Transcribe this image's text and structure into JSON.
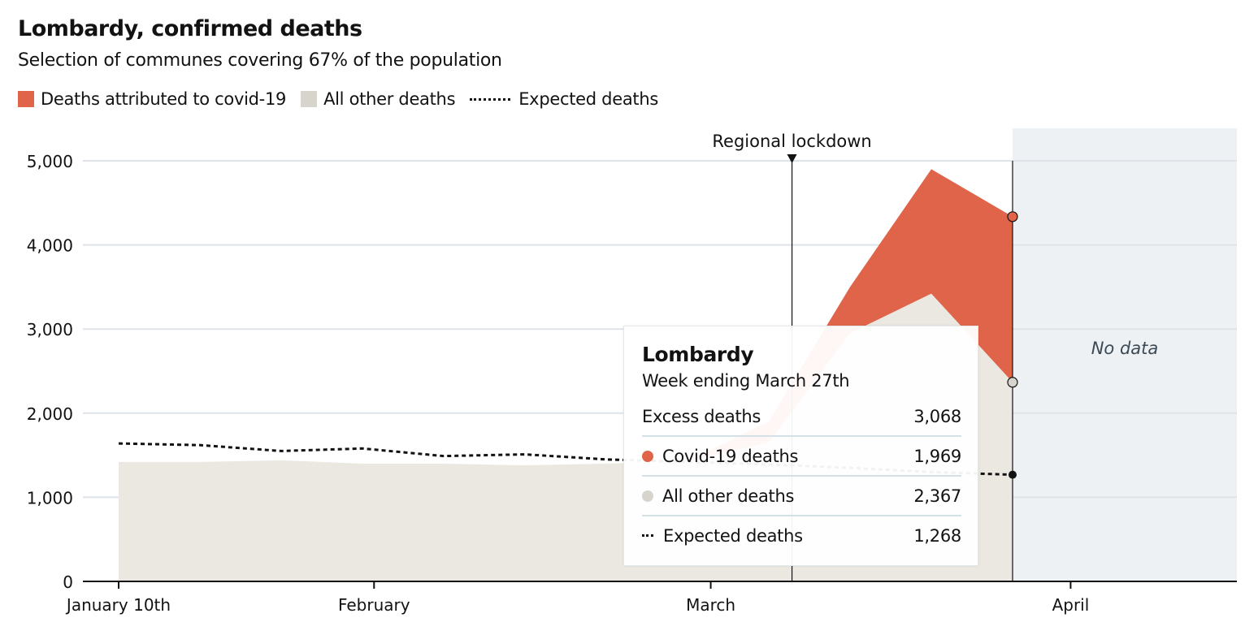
{
  "chart_data": {
    "type": "area",
    "title": "Lombardy, confirmed deaths",
    "subtitle": "Selection of communes covering 67% of the population",
    "legend": [
      {
        "label": "Deaths attributed to covid-19",
        "color": "#e0644a",
        "kind": "area"
      },
      {
        "label": "All other deaths",
        "color": "#d6d4cc",
        "kind": "area"
      },
      {
        "label": "Expected deaths",
        "color": "#121212",
        "kind": "dotted-line"
      }
    ],
    "legend_placement": "top-left",
    "x": [
      "2020-01-10",
      "2020-01-17",
      "2020-01-24",
      "2020-01-31",
      "2020-02-07",
      "2020-02-14",
      "2020-02-21",
      "2020-02-28",
      "2020-03-06",
      "2020-03-13",
      "2020-03-20",
      "2020-03-27"
    ],
    "x_range": [
      "2020-01-10",
      "2020-04-18"
    ],
    "x_ticks": [
      {
        "date": "2020-01-10",
        "label": "January 10th"
      },
      {
        "date": "2020-02-01",
        "label": "February"
      },
      {
        "date": "2020-03-01",
        "label": "March"
      },
      {
        "date": "2020-04-01",
        "label": "April"
      }
    ],
    "ylim": [
      0,
      5000
    ],
    "y_ticks": [
      0,
      1000,
      2000,
      3000,
      4000,
      5000
    ],
    "y_tick_labels": [
      "0",
      "1,000",
      "2,000",
      "3,000",
      "4,000",
      "5,000"
    ],
    "grid": "horizontal",
    "series": [
      {
        "name": "All other deaths",
        "color": "#ebe8e1",
        "values": [
          1420,
          1420,
          1440,
          1400,
          1400,
          1380,
          1400,
          1430,
          1650,
          2950,
          3420,
          2367
        ]
      },
      {
        "name": "Deaths attributed to covid-19",
        "color": "#e0644a",
        "values": [
          0,
          0,
          0,
          0,
          0,
          0,
          0,
          0,
          250,
          550,
          1480,
          1969
        ]
      },
      {
        "name": "Expected deaths",
        "color": "#121212",
        "values": [
          1640,
          1620,
          1550,
          1580,
          1490,
          1510,
          1450,
          1420,
          1390,
          1350,
          1300,
          1268
        ]
      }
    ],
    "annotations": [
      {
        "type": "vline",
        "date": "2020-03-08",
        "label": "Regional lockdown"
      },
      {
        "type": "shaded-region",
        "from": "2020-03-27",
        "to": "2020-04-18",
        "label": "No data",
        "color": "#eef1f3"
      }
    ],
    "tooltip": {
      "title": "Lombardy",
      "subtitle": "Week ending March 27th",
      "rows": [
        {
          "label": "Excess deaths",
          "value": "3,068"
        },
        {
          "label": "Covid-19 deaths",
          "value": "1,969",
          "marker": "dot",
          "color": "#e0644a"
        },
        {
          "label": "All other deaths",
          "value": "2,367",
          "marker": "dot",
          "color": "#d6d4cc"
        },
        {
          "label": "Expected deaths",
          "value": "1,268",
          "marker": "dotted-line"
        }
      ]
    }
  }
}
